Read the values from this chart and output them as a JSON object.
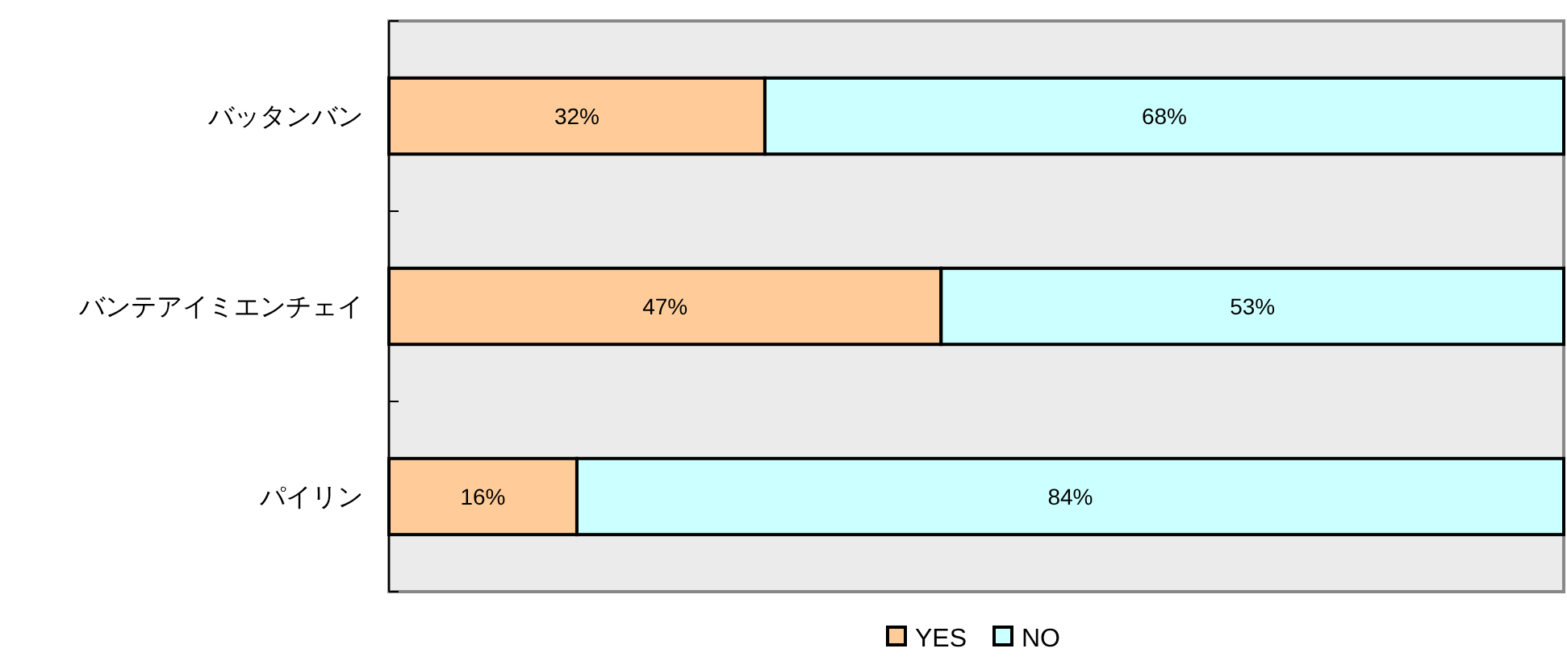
{
  "chart_data": {
    "type": "bar",
    "orientation": "horizontal",
    "stacked": true,
    "categories": [
      "バッタンバン",
      "バンテアイミエンチェイ",
      "パイリン"
    ],
    "series": [
      {
        "name": "YES",
        "color": "#ffcc99",
        "values": [
          32,
          47,
          16
        ],
        "value_labels": [
          "32%",
          "47%",
          "16%"
        ]
      },
      {
        "name": "NO",
        "color": "#ccffff",
        "values": [
          68,
          53,
          84
        ],
        "value_labels": [
          "68%",
          "53%",
          "84%"
        ]
      }
    ],
    "xlim": [
      0,
      100
    ],
    "tick_labels": "y",
    "legend": "bottom",
    "grid": false
  }
}
